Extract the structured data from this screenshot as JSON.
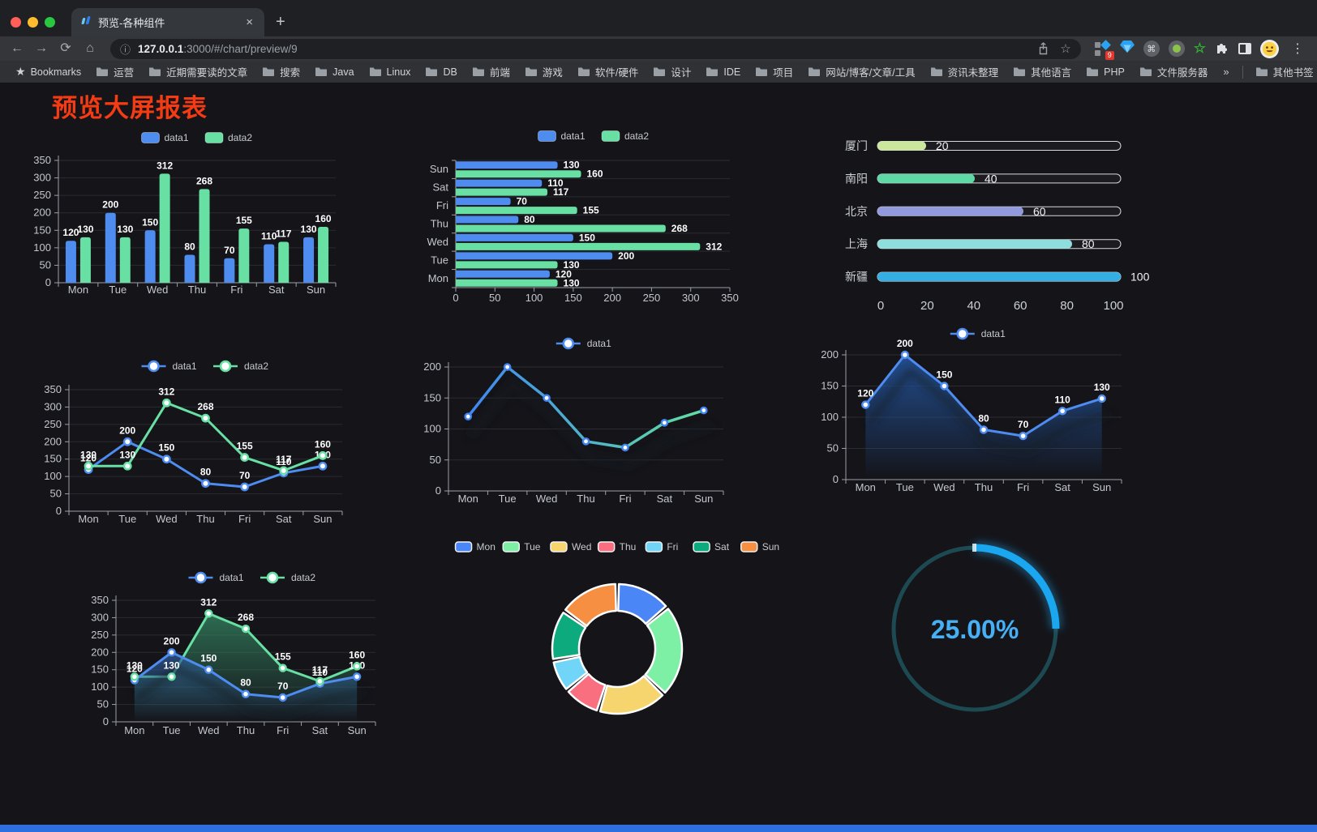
{
  "browser": {
    "traffic_lights": [
      "#ff5f57",
      "#febc2e",
      "#28c840"
    ],
    "tab_title": "预览-各种组件",
    "close_label": "×",
    "new_tab_label": "+",
    "back_label": "←",
    "forward_label": "→",
    "reload_label": "⟳",
    "home_label": "⌂",
    "url_info_icon": "ⓘ",
    "url_host": "127.0.0.1",
    "url_rest": ":3000/#/chart/preview/9",
    "star_label": "☆",
    "extension_badge": "9",
    "cmd_glyph": "⌘",
    "green_star_glyph": "☆",
    "menu_glyph": "⋮",
    "bookmarks_label": "Bookmarks",
    "bookmark_folders": [
      "运营",
      "近期需要读的文章",
      "搜索",
      "Java",
      "Linux",
      "DB",
      "前端",
      "游戏",
      "软件/硬件",
      "设计",
      "IDE",
      "项目",
      "网站/博客/文章/工具",
      "资讯未整理",
      "其他语言",
      "PHP",
      "文件服务器"
    ],
    "overflow_chevron": "»",
    "other_bookmarks": "其他书签"
  },
  "page": {
    "title": "预览大屏报表",
    "title_color": "#f43b14",
    "background": "#141419",
    "bottom_bar_color": "#2d6fe0",
    "accent_blue": "#4e8cf0",
    "accent_green": "#68e0a3"
  },
  "chart_data": [
    {
      "id": "bar-vertical",
      "type": "bar",
      "categories": [
        "Mon",
        "Tue",
        "Wed",
        "Thu",
        "Fri",
        "Sat",
        "Sun"
      ],
      "series": [
        {
          "name": "data1",
          "color": "#4e8cf0",
          "values": [
            120,
            200,
            150,
            80,
            70,
            110,
            130
          ]
        },
        {
          "name": "data2",
          "color": "#68e0a3",
          "values": [
            130,
            130,
            312,
            268,
            155,
            117,
            160
          ]
        }
      ],
      "ylim": [
        0,
        350
      ],
      "yticks": [
        0,
        50,
        100,
        150,
        200,
        250,
        300,
        350
      ],
      "legend_position": "top",
      "grid": true,
      "value_labels": true
    },
    {
      "id": "bar-horizontal",
      "type": "bar",
      "orientation": "horizontal",
      "categories_bottom_to_top": [
        "Mon",
        "Tue",
        "Wed",
        "Thu",
        "Fri",
        "Sat",
        "Sun"
      ],
      "series": [
        {
          "name": "data1",
          "color": "#4e8cf0",
          "values": [
            120,
            200,
            150,
            80,
            70,
            110,
            130
          ]
        },
        {
          "name": "data2",
          "color": "#68e0a3",
          "values": [
            130,
            130,
            312,
            268,
            155,
            117,
            160
          ]
        }
      ],
      "xlim": [
        0,
        350
      ],
      "xticks": [
        0,
        50,
        100,
        150,
        200,
        250,
        300,
        350
      ],
      "legend_position": "top",
      "value_labels": true
    },
    {
      "id": "progress-bars",
      "type": "bar",
      "style": "capsule-progress",
      "items": [
        {
          "label": "厦门",
          "value": 20,
          "color": "#cbe79c"
        },
        {
          "label": "南阳",
          "value": 40,
          "color": "#5ed8a5"
        },
        {
          "label": "北京",
          "value": 60,
          "color": "#9399dd"
        },
        {
          "label": "上海",
          "value": 80,
          "color": "#8fdede"
        },
        {
          "label": "新疆",
          "value": 100,
          "color": "#35aee4"
        }
      ],
      "xlim": [
        0,
        100
      ],
      "xticks": [
        0,
        20,
        40,
        60,
        80,
        100
      ]
    },
    {
      "id": "line-two-series",
      "type": "line",
      "categories": [
        "Mon",
        "Tue",
        "Wed",
        "Thu",
        "Fri",
        "Sat",
        "Sun"
      ],
      "series": [
        {
          "name": "data1",
          "color": "#4e8cf0",
          "values": [
            120,
            200,
            150,
            80,
            70,
            110,
            130
          ]
        },
        {
          "name": "data2",
          "color": "#68e0a3",
          "values": [
            130,
            130,
            312,
            268,
            155,
            117,
            160
          ]
        }
      ],
      "ylim": [
        0,
        350
      ],
      "yticks": [
        0,
        50,
        100,
        150,
        200,
        250,
        300,
        350
      ],
      "legend_position": "top",
      "value_labels": true
    },
    {
      "id": "line-gradient",
      "type": "line",
      "categories": [
        "Mon",
        "Tue",
        "Wed",
        "Thu",
        "Fri",
        "Sat",
        "Sun"
      ],
      "series": [
        {
          "name": "data1",
          "gradient": [
            "#3f86f2",
            "#62dfa2"
          ],
          "values": [
            120,
            200,
            150,
            80,
            70,
            110,
            130
          ]
        }
      ],
      "ylim": [
        0,
        200
      ],
      "yticks": [
        0,
        50,
        100,
        150,
        200
      ],
      "legend_position": "top",
      "value_labels": false
    },
    {
      "id": "area-single",
      "type": "area",
      "categories": [
        "Mon",
        "Tue",
        "Wed",
        "Thu",
        "Fri",
        "Sat",
        "Sun"
      ],
      "series": [
        {
          "name": "data1",
          "color": "#4e8cf0",
          "fill_from": "rgba(36,84,156,0.9)",
          "fill_to": "rgba(36,84,156,0)",
          "values": [
            120,
            200,
            150,
            80,
            70,
            110,
            130
          ]
        }
      ],
      "ylim": [
        0,
        200
      ],
      "yticks": [
        0,
        50,
        100,
        150,
        200
      ],
      "legend_position": "top",
      "value_labels": true
    },
    {
      "id": "area-two-series",
      "type": "area",
      "categories": [
        "Mon",
        "Tue",
        "Wed",
        "Thu",
        "Fri",
        "Sat",
        "Sun"
      ],
      "series": [
        {
          "name": "data1",
          "color": "#4e8cf0",
          "fill_from": "rgba(47,96,158,0.75)",
          "fill_to": "rgba(47,96,158,0)",
          "values": [
            120,
            200,
            150,
            80,
            70,
            110,
            130
          ]
        },
        {
          "name": "data2",
          "color": "#68e0a3",
          "fill_from": "rgba(52,130,96,0.8)",
          "fill_to": "rgba(52,130,96,0)",
          "values": [
            130,
            130,
            312,
            268,
            155,
            117,
            160
          ]
        }
      ],
      "ylim": [
        0,
        350
      ],
      "yticks": [
        0,
        50,
        100,
        150,
        200,
        250,
        300,
        350
      ],
      "legend_position": "top",
      "value_labels": true
    },
    {
      "id": "doughnut",
      "type": "pie",
      "categories": [
        "Mon",
        "Tue",
        "Wed",
        "Thu",
        "Fri",
        "Sat",
        "Sun"
      ],
      "values": [
        120,
        200,
        150,
        80,
        70,
        110,
        130
      ],
      "colors": [
        "#4a86f5",
        "#7df0a6",
        "#f7d56e",
        "#f96f80",
        "#70d5f7",
        "#0caa7c",
        "#f78f42"
      ],
      "inner_radius_ratio": 0.59,
      "legend_position": "top"
    },
    {
      "id": "gauge",
      "type": "gauge",
      "value_percent": 25,
      "label": "25.00%",
      "bar_color": "#1aa7f0",
      "track_color": "#1d4a52",
      "text_color": "#47b0f4"
    }
  ]
}
